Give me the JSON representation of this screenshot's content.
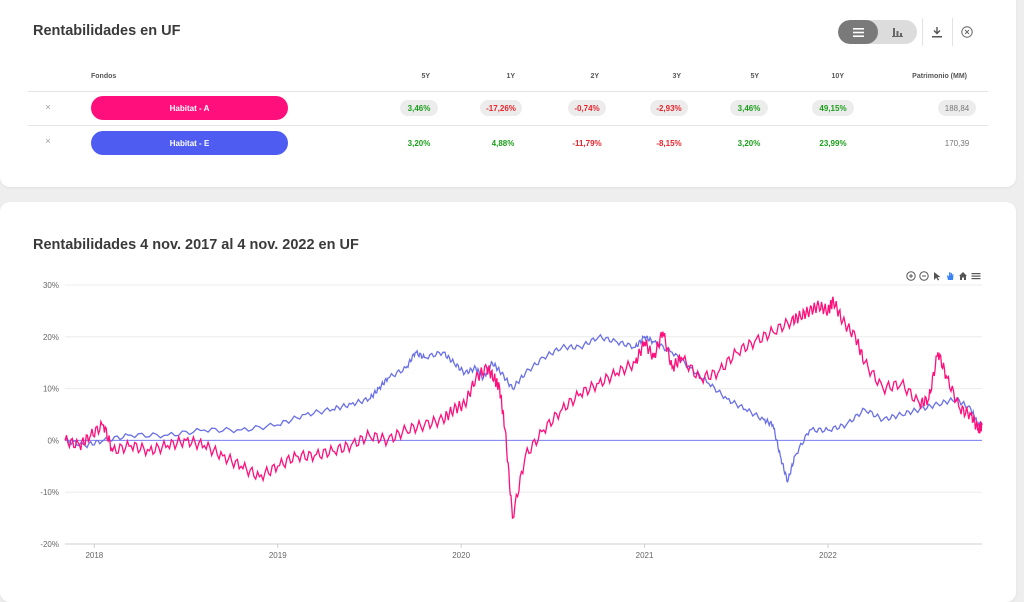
{
  "table_section": {
    "title": "Rentabilidades en UF",
    "headers": {
      "fund": "Fondos",
      "periods": [
        "5Y",
        "1Y",
        "2Y",
        "3Y",
        "5Y",
        "10Y"
      ],
      "patrimonio": "Patrimonio (MM)"
    },
    "rows": [
      {
        "remove": "×",
        "name": "Habitat - A",
        "color": "#ff0f7b",
        "values": [
          "3,46%",
          "-17,26%",
          "-0,74%",
          "-2,93%",
          "3,46%",
          "49,15%"
        ],
        "signs": [
          "pos",
          "neg",
          "neg",
          "neg",
          "pos",
          "pos"
        ],
        "patrimonio": "188,84"
      },
      {
        "remove": "×",
        "name": "Habitat - E",
        "color": "#4e5cf2",
        "values": [
          "3,20%",
          "4,88%",
          "-11,79%",
          "-8,15%",
          "3,20%",
          "23,99%"
        ],
        "signs": [
          "pos",
          "pos",
          "neg",
          "neg",
          "pos",
          "pos"
        ],
        "patrimonio": "170,39"
      }
    ]
  },
  "toolbar": {
    "icons": [
      "list-icon",
      "bar-chart-icon",
      "download-icon",
      "close-circle-icon"
    ]
  },
  "chart_section": {
    "title": "Rentabilidades 4 nov. 2017 al 4 nov. 2022 en UF",
    "toolbar_icons": [
      "zoom-in-icon",
      "zoom-out-icon",
      "select-icon",
      "pan-icon",
      "home-icon",
      "menu-icon"
    ]
  },
  "chart_data": {
    "type": "line",
    "title": "Rentabilidades 4 nov. 2017 al 4 nov. 2022 en UF",
    "xlabel": "",
    "ylabel": "",
    "ylim": [
      -20,
      30
    ],
    "yticks": [
      30,
      20,
      10,
      0,
      -10,
      -20
    ],
    "ytick_labels": [
      "30%",
      "20%",
      "10%",
      "0%",
      "-10%",
      "-20%"
    ],
    "xlim": [
      2017.84,
      2022.84
    ],
    "xticks": [
      2018,
      2019,
      2020,
      2021,
      2022
    ],
    "xtick_labels": [
      "2018",
      "2019",
      "2020",
      "2021",
      "2022"
    ],
    "grid": true,
    "series": [
      {
        "name": "Habitat - A",
        "color": "#ff0f7b",
        "x": [
          2017.84,
          2017.92,
          2017.98,
          2018.05,
          2018.1,
          2018.2,
          2018.3,
          2018.4,
          2018.5,
          2018.6,
          2018.7,
          2018.8,
          2018.9,
          2019.0,
          2019.1,
          2019.2,
          2019.3,
          2019.4,
          2019.5,
          2019.6,
          2019.7,
          2019.8,
          2019.9,
          2019.96,
          2020.02,
          2020.08,
          2020.14,
          2020.18,
          2020.21,
          2020.24,
          2020.28,
          2020.35,
          2020.45,
          2020.55,
          2020.65,
          2020.75,
          2020.85,
          2020.95,
          2021.0,
          2021.05,
          2021.1,
          2021.15,
          2021.2,
          2021.3,
          2021.4,
          2021.5,
          2021.6,
          2021.7,
          2021.8,
          2021.85,
          2021.9,
          2021.95,
          2022.0,
          2022.03,
          2022.08,
          2022.15,
          2022.2,
          2022.3,
          2022.4,
          2022.5,
          2022.55,
          2022.6,
          2022.65,
          2022.72,
          2022.78,
          2022.82,
          2022.84
        ],
        "y": [
          0,
          -1,
          1,
          3,
          -2,
          -1,
          -2,
          -1,
          0,
          -1,
          -3,
          -5,
          -7,
          -5,
          -3,
          -3,
          -2,
          -1,
          1,
          0,
          2,
          3,
          4,
          6,
          7,
          12,
          14,
          12,
          10,
          2,
          -15,
          -3,
          2,
          6,
          9,
          11,
          13,
          15,
          19,
          16,
          21,
          14,
          16,
          12,
          13,
          17,
          19,
          21,
          23,
          24,
          25,
          26,
          25,
          27,
          23,
          20,
          15,
          10,
          11,
          7,
          8,
          17,
          12,
          6,
          5,
          2,
          3
        ]
      },
      {
        "name": "Habitat - E",
        "color": "#6a70e6",
        "x": [
          2017.84,
          2017.95,
          2018.05,
          2018.2,
          2018.4,
          2018.6,
          2018.8,
          2019.0,
          2019.15,
          2019.3,
          2019.4,
          2019.5,
          2019.55,
          2019.6,
          2019.7,
          2019.75,
          2019.8,
          2019.9,
          2019.96,
          2020.02,
          2020.08,
          2020.12,
          2020.17,
          2020.22,
          2020.28,
          2020.35,
          2020.45,
          2020.55,
          2020.65,
          2020.75,
          2020.85,
          2020.95,
          2021.0,
          2021.05,
          2021.15,
          2021.25,
          2021.35,
          2021.45,
          2021.55,
          2021.65,
          2021.7,
          2021.74,
          2021.78,
          2021.82,
          2021.9,
          2022.0,
          2022.1,
          2022.2,
          2022.3,
          2022.4,
          2022.5,
          2022.6,
          2022.7,
          2022.78,
          2022.82,
          2022.84
        ],
        "y": [
          0,
          -1,
          0,
          1,
          1,
          2,
          2,
          3,
          5,
          6,
          7,
          8,
          10,
          12,
          14,
          17,
          16,
          17,
          15,
          13,
          14,
          12,
          15,
          13,
          10,
          13,
          16,
          18,
          18,
          20,
          19,
          18,
          20,
          19,
          17,
          14,
          11,
          8,
          6,
          4,
          3,
          -3,
          -8,
          -3,
          2,
          2,
          3,
          6,
          4,
          5,
          6,
          7,
          8,
          6,
          3,
          3
        ]
      },
      {
        "name": "",
        "color": "#7b7ff0",
        "x": [
          2017.84,
          2022.84
        ],
        "y": [
          0,
          0
        ]
      }
    ]
  }
}
